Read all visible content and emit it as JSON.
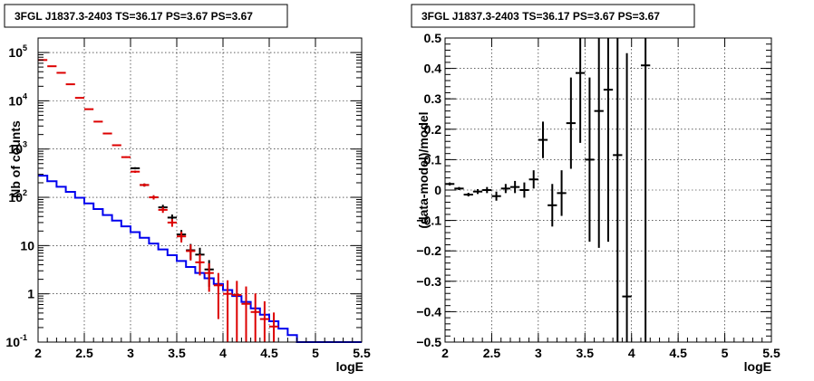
{
  "chart_data": [
    {
      "type": "line",
      "title": "3FGL J1837.3-2403 TS=36.17 PS=3.67 PS=3.67",
      "xlabel": "logE",
      "ylabel": "Nb of counts",
      "xlim": [
        2,
        5.5
      ],
      "ylim": [
        0.1,
        200000
      ],
      "yscale": "log",
      "grid": true,
      "x_ticks": [
        "2",
        "2.5",
        "3",
        "3.5",
        "4",
        "4.5",
        "5",
        "5.5"
      ],
      "y_ticks": [
        {
          "base": "10",
          "exp": "-1",
          "value": 0.1
        },
        {
          "base": "1",
          "exp": "",
          "value": 1
        },
        {
          "base": "10",
          "exp": "",
          "value": 10
        },
        {
          "base": "10",
          "exp": "2",
          "value": 100
        },
        {
          "base": "10",
          "exp": "3",
          "value": 1000
        },
        {
          "base": "10",
          "exp": "4",
          "value": 10000
        },
        {
          "base": "10",
          "exp": "5",
          "value": 100000
        }
      ],
      "bin_edges": [
        2.0,
        2.1,
        2.2,
        2.3,
        2.4,
        2.5,
        2.6,
        2.7,
        2.8,
        2.9,
        3.0,
        3.1,
        3.2,
        3.3,
        3.4,
        3.5,
        3.6,
        3.7,
        3.8,
        3.9,
        4.0,
        4.1,
        4.2,
        4.3,
        4.4,
        4.5,
        4.6,
        4.7,
        4.8,
        4.9,
        5.0,
        5.1,
        5.2,
        5.3,
        5.4,
        5.5
      ],
      "series": [
        {
          "style": "step",
          "color": "#0000ee",
          "values": [
            280,
            215,
            165,
            130,
            98,
            75,
            57,
            43,
            33,
            25,
            19,
            14.5,
            11,
            8.3,
            6.3,
            4.8,
            3.6,
            2.7,
            2.1,
            1.6,
            1.2,
            0.9,
            0.68,
            0.5,
            0.37,
            0.27,
            0.19,
            0.14,
            0.1,
            0.1,
            0.1,
            0.1,
            0.1,
            0.1,
            0.1
          ]
        },
        {
          "style": "points",
          "color": "#000000",
          "x": [
            3.05,
            3.15,
            3.25,
            3.35,
            3.45,
            3.55,
            3.65,
            3.75,
            3.85
          ],
          "y": [
            400,
            180,
            100,
            62,
            38,
            17,
            8,
            6.5,
            3.2
          ],
          "err_low": [
            20,
            13,
            10,
            8,
            6,
            4,
            2.8,
            2.5,
            1.8
          ],
          "err_high": [
            20,
            13,
            10,
            8,
            6,
            4,
            2.8,
            2.5,
            1.8
          ]
        },
        {
          "style": "points",
          "color": "#dd0000",
          "x": [
            2.05,
            2.15,
            2.25,
            2.35,
            2.45,
            2.55,
            2.65,
            2.75,
            2.85,
            2.95,
            3.05,
            3.15,
            3.25,
            3.35,
            3.45,
            3.55,
            3.65,
            3.75,
            3.85,
            3.95,
            4.05,
            4.15,
            4.25,
            4.35,
            4.45,
            4.55
          ],
          "y": [
            70000,
            52000,
            38000,
            22000,
            11500,
            6700,
            3700,
            2100,
            1200,
            680,
            340,
            180,
            100,
            55,
            30,
            15.5,
            7.7,
            4.5,
            2.7,
            1.5,
            1.0,
            0.95,
            0.62,
            0.42,
            0.3,
            0.21
          ],
          "err_low": [
            265,
            228,
            195,
            148,
            107,
            82,
            61,
            46,
            35,
            26,
            18,
            13,
            10,
            7.4,
            5.5,
            3.9,
            2.8,
            2.1,
            1.6,
            1.2,
            1.0,
            0.9,
            0.6,
            0.35,
            0.2,
            0.11
          ],
          "err_high": [
            265,
            228,
            195,
            148,
            107,
            82,
            61,
            46,
            35,
            26,
            18,
            13,
            10,
            7.4,
            5.5,
            3.9,
            2.8,
            2.1,
            1.6,
            1.2,
            0.9,
            0.9,
            0.8,
            0.6,
            0.4,
            0.2
          ]
        }
      ]
    },
    {
      "type": "scatter",
      "title": "3FGL J1837.3-2403 TS=36.17 PS=3.67 PS=3.67",
      "xlabel": "logE",
      "ylabel": "(data-model)/model",
      "xlim": [
        2,
        5.5
      ],
      "ylim": [
        -0.5,
        0.5
      ],
      "grid": true,
      "x_ticks": [
        "2",
        "2.5",
        "3",
        "3.5",
        "4",
        "4.5",
        "5",
        "5.5"
      ],
      "y_ticks": [
        "−0.5",
        "−0.4",
        "−0.3",
        "−0.2",
        "−0.1",
        "0",
        "0.1",
        "0.2",
        "0.3",
        "0.4",
        "0.5"
      ],
      "series": [
        {
          "style": "points",
          "color": "#000000",
          "x": [
            2.05,
            2.15,
            2.25,
            2.35,
            2.45,
            2.55,
            2.65,
            2.75,
            2.85,
            2.95,
            3.05,
            3.15,
            3.25,
            3.35,
            3.45,
            3.55,
            3.65,
            3.75,
            3.85,
            3.95,
            4.15
          ],
          "y": [
            0.02,
            0.005,
            -0.015,
            -0.005,
            0.0,
            -0.02,
            0.005,
            0.01,
            0.0,
            0.035,
            0.165,
            -0.05,
            -0.01,
            0.22,
            0.385,
            0.1,
            0.26,
            0.33,
            0.115,
            -0.35,
            0.41
          ],
          "err": [
            0.005,
            0.005,
            0.006,
            0.008,
            0.01,
            0.015,
            0.015,
            0.02,
            0.025,
            0.03,
            0.06,
            0.07,
            0.075,
            0.15,
            0.23,
            0.27,
            0.45,
            0.5,
            0.65,
            0.8,
            0.95
          ]
        }
      ]
    }
  ]
}
